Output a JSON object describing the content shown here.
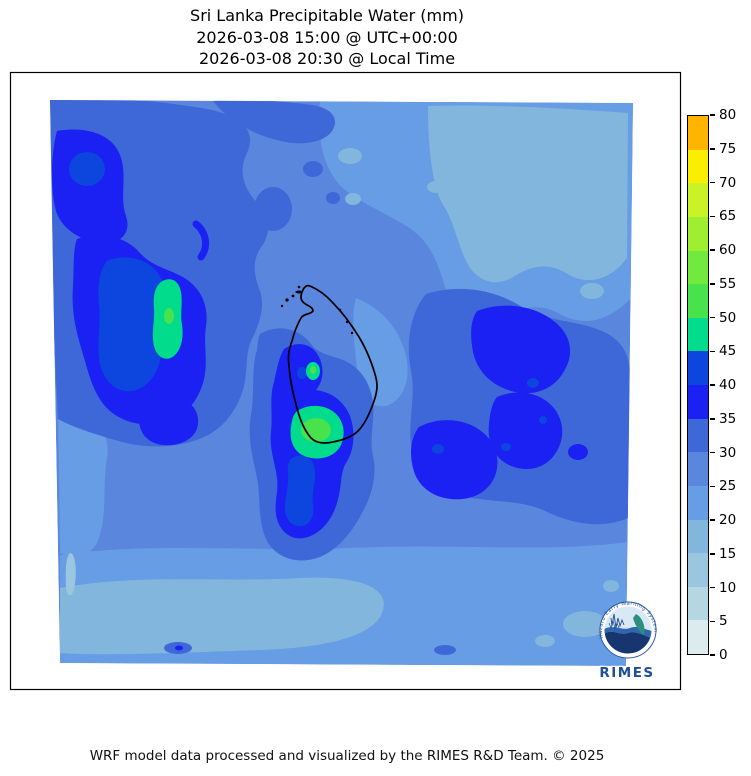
{
  "title": {
    "line1": "Sri Lanka Precipitable Water (mm)",
    "line2": "2026-03-08 15:00 @ UTC+00:00",
    "line3": "2026-03-08 20:30 @ Local Time"
  },
  "footer": {
    "credit": "WRF model data processed and visualized by the RIMES R&D Team. © 2025"
  },
  "logo": {
    "name": "RIMES",
    "ring_text": "Hazard Early Warning System"
  },
  "chart_data": {
    "type": "heatmap",
    "title": "Sri Lanka Precipitable Water (mm)",
    "variable": "Precipitable Water",
    "units": "mm",
    "timestamp_utc": "2026-03-08 15:00 @ UTC+00:00",
    "timestamp_local": "2026-03-08 20:30 @ Local Time",
    "colorbar": {
      "min": 0,
      "max": 80,
      "tick_step": 5,
      "ticks": [
        0,
        5,
        10,
        15,
        20,
        25,
        30,
        35,
        40,
        45,
        50,
        55,
        60,
        65,
        70,
        75,
        80
      ],
      "band_edges": [
        0,
        5,
        10,
        15,
        20,
        25,
        30,
        35,
        40,
        45,
        50,
        55,
        60,
        65,
        70,
        75,
        80
      ],
      "band_colors": [
        "#DBEBEE",
        "#B5D6E3",
        "#9AC6DF",
        "#83B6DD",
        "#679DE4",
        "#5A86DE",
        "#3E68D8",
        "#1B21F2",
        "#0C46DF",
        "#00DC8C",
        "#47E24C",
        "#72E93E",
        "#A0EE32",
        "#C9F227",
        "#FCEE00",
        "#FFB400"
      ]
    },
    "map": {
      "coastline": "Sri Lanka",
      "value_summary": "Field mostly 15-40 mm; local maxima 45-55 mm west of the island and over southwestern Sri Lanka"
    }
  }
}
